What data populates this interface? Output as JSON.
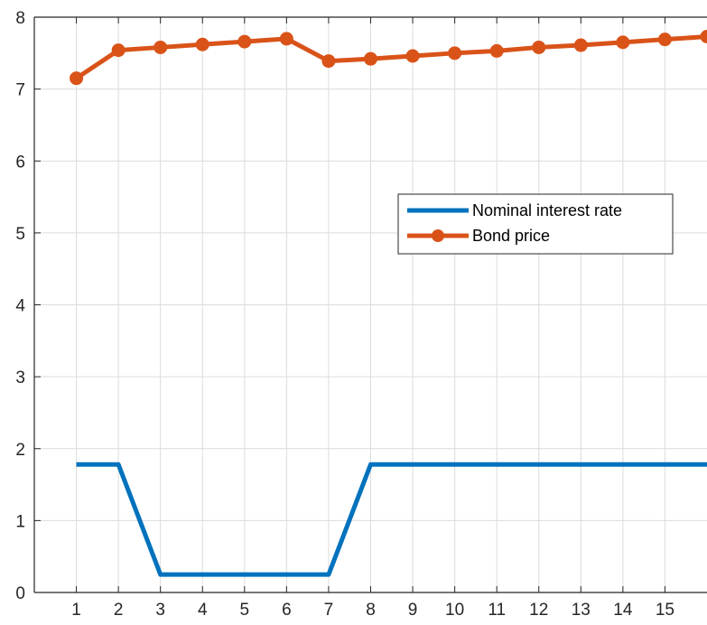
{
  "chart_data": {
    "type": "line",
    "title": "",
    "xlabel": "",
    "ylabel": "",
    "x": [
      1,
      2,
      3,
      4,
      5,
      6,
      7,
      8,
      9,
      10,
      11,
      12,
      13,
      14,
      15,
      16
    ],
    "xlim": [
      0,
      16
    ],
    "ylim": [
      0,
      8
    ],
    "xticks": [
      "1",
      "2",
      "3",
      "4",
      "5",
      "6",
      "7",
      "8",
      "9",
      "10",
      "11",
      "12",
      "13",
      "14",
      "15"
    ],
    "yticks": [
      "0",
      "1",
      "2",
      "3",
      "4",
      "5",
      "6",
      "7",
      "8"
    ],
    "grid": true,
    "legend_position": "center-right",
    "series": [
      {
        "name": "Nominal interest rate",
        "color": "#0072BD",
        "marker": "none",
        "values": [
          1.78,
          1.78,
          0.25,
          0.25,
          0.25,
          0.25,
          0.25,
          1.78,
          1.78,
          1.78,
          1.78,
          1.78,
          1.78,
          1.78,
          1.78,
          1.78
        ]
      },
      {
        "name": "Bond price",
        "color": "#D95319",
        "marker": "circle",
        "values": [
          7.15,
          7.54,
          7.58,
          7.62,
          7.66,
          7.7,
          7.39,
          7.42,
          7.46,
          7.5,
          7.53,
          7.58,
          7.61,
          7.65,
          7.69,
          7.73
        ]
      }
    ]
  }
}
